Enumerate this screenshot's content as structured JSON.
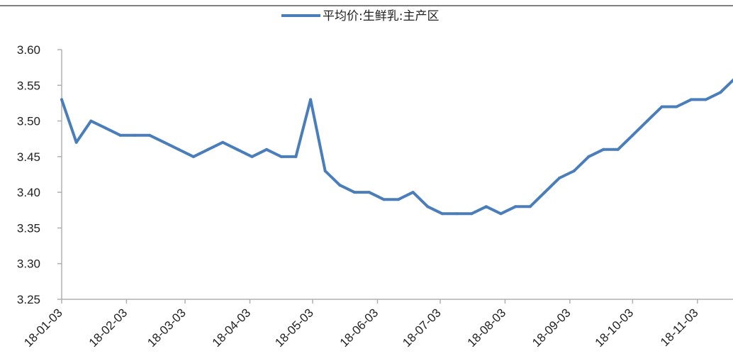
{
  "chart_data": {
    "type": "line",
    "title": "",
    "xlabel": "",
    "ylabel": "",
    "ylim": [
      3.25,
      3.6
    ],
    "y_ticks": [
      "3.25",
      "3.30",
      "3.35",
      "3.40",
      "3.45",
      "3.50",
      "3.55",
      "3.60"
    ],
    "x_tick_labels": [
      "18-01-03",
      "18-02-03",
      "18-03-03",
      "18-04-03",
      "18-05-03",
      "18-06-03",
      "18-07-03",
      "18-08-03",
      "18-09-03",
      "18-10-03",
      "18-11-03"
    ],
    "grid": false,
    "legend_position": "top-center",
    "series": [
      {
        "name": "平均价:生鲜乳:主产区",
        "color": "#4a7ebb",
        "x": [
          "2018-01-03",
          "2018-01-10",
          "2018-01-17",
          "2018-01-24",
          "2018-01-31",
          "2018-02-07",
          "2018-02-14",
          "2018-02-21",
          "2018-02-28",
          "2018-03-07",
          "2018-03-14",
          "2018-03-21",
          "2018-03-28",
          "2018-04-04",
          "2018-04-11",
          "2018-04-18",
          "2018-04-25",
          "2018-05-02",
          "2018-05-09",
          "2018-05-16",
          "2018-05-23",
          "2018-05-30",
          "2018-06-06",
          "2018-06-13",
          "2018-06-20",
          "2018-06-27",
          "2018-07-04",
          "2018-07-11",
          "2018-07-18",
          "2018-07-25",
          "2018-08-01",
          "2018-08-08",
          "2018-08-15",
          "2018-08-22",
          "2018-08-29",
          "2018-09-05",
          "2018-09-12",
          "2018-09-19",
          "2018-09-26",
          "2018-10-03",
          "2018-10-10",
          "2018-10-17",
          "2018-10-24",
          "2018-10-31",
          "2018-11-07",
          "2018-11-14",
          "2018-11-21"
        ],
        "values": [
          3.53,
          3.47,
          3.5,
          3.49,
          3.48,
          3.48,
          3.48,
          3.47,
          3.46,
          3.45,
          3.46,
          3.47,
          3.46,
          3.45,
          3.46,
          3.45,
          3.45,
          3.53,
          3.43,
          3.41,
          3.4,
          3.4,
          3.39,
          3.39,
          3.4,
          3.38,
          3.37,
          3.37,
          3.37,
          3.38,
          3.37,
          3.38,
          3.38,
          3.4,
          3.42,
          3.43,
          3.45,
          3.46,
          3.46,
          3.48,
          3.5,
          3.52,
          3.52,
          3.53,
          3.53,
          3.54,
          3.56
        ]
      }
    ]
  }
}
